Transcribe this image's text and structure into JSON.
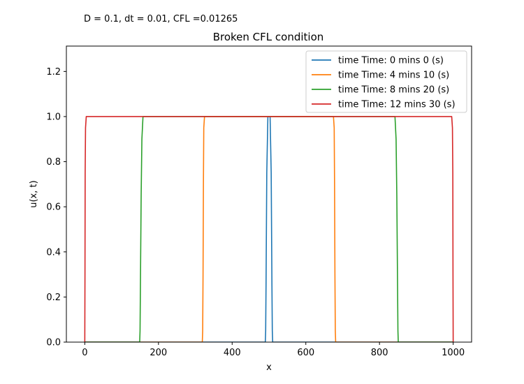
{
  "chart_data": {
    "type": "line",
    "title": "Broken CFL condition",
    "subtitle": "D = 0.1, dt = 0.01, CFL =0.01265",
    "xlabel": "x",
    "ylabel": "u(x, t)",
    "xlim": [
      -50,
      1050
    ],
    "ylim": [
      0,
      1.3125
    ],
    "xticks": [
      0,
      200,
      400,
      600,
      800,
      1000
    ],
    "yticks": [
      0.0,
      0.2,
      0.4,
      0.6,
      0.8,
      1.0,
      1.2
    ],
    "xtick_labels": [
      "0",
      "200",
      "400",
      "600",
      "800",
      "1000"
    ],
    "ytick_labels": [
      "0.0",
      "0.2",
      "0.4",
      "0.6",
      "0.8",
      "1.0",
      "1.2"
    ],
    "grid": false,
    "legend_position": "top-right",
    "series": [
      {
        "name": "time Time: 0 mins 0 (s)",
        "color": "#1f77b4",
        "x": [
          0,
          490,
          491,
          492,
          494,
          497,
          503,
          506,
          508,
          509,
          510,
          1000
        ],
        "y": [
          0,
          0,
          0.05,
          0.25,
          0.75,
          1.0,
          1.0,
          0.75,
          0.25,
          0.05,
          0,
          0
        ]
      },
      {
        "name": "time Time: 4 mins 10 (s)",
        "color": "#ff7f0e",
        "x": [
          0,
          319,
          320,
          321,
          322,
          323,
          325,
          675,
          677,
          678,
          679,
          680,
          681,
          1000
        ],
        "y": [
          0,
          0,
          0.05,
          0.3,
          0.7,
          0.95,
          1.0,
          1.0,
          0.95,
          0.7,
          0.3,
          0.05,
          0,
          0
        ]
      },
      {
        "name": "time Time: 8 mins 20 (s)",
        "color": "#2ca02c",
        "x": [
          0,
          149,
          150,
          151,
          153,
          155,
          158,
          842,
          845,
          847,
          849,
          850,
          851,
          1000
        ],
        "y": [
          0,
          0,
          0.05,
          0.25,
          0.65,
          0.9,
          1.0,
          1.0,
          0.9,
          0.65,
          0.25,
          0.05,
          0,
          0
        ]
      },
      {
        "name": "time Time: 12 mins 30 (s)",
        "color": "#d62728",
        "x": [
          0,
          0.5,
          1,
          2,
          4,
          996,
          998,
          999,
          999.5,
          1000
        ],
        "y": [
          0,
          0.3,
          0.75,
          0.95,
          1.0,
          1.0,
          0.95,
          0.75,
          0.3,
          0
        ]
      }
    ]
  }
}
